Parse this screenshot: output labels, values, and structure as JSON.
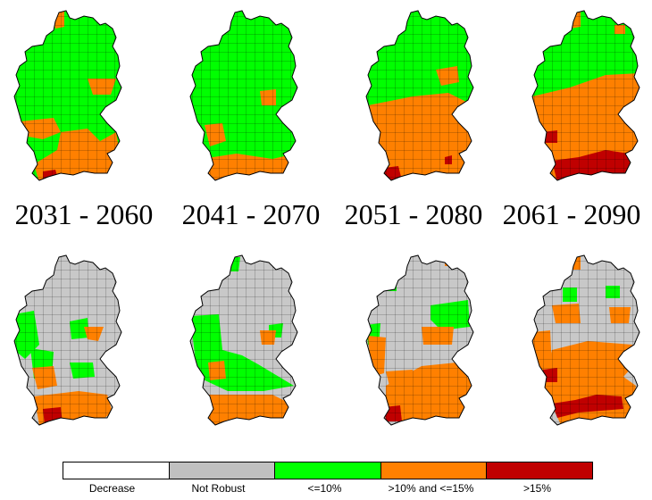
{
  "periods": [
    "2031 - 2060",
    "2041 - 2070",
    "2051 - 2080",
    "2061 - 2090"
  ],
  "legend": [
    {
      "label": "Decrease",
      "color": "#ffffff"
    },
    {
      "label": "Not Robust",
      "color": "#c0c0c0"
    },
    {
      "label": "<=10%",
      "color": "#00ff00"
    },
    {
      "label": ">10% and <=15%",
      "color": "#ff8000"
    },
    {
      "label": ">15%",
      "color": "#c00000"
    }
  ]
}
